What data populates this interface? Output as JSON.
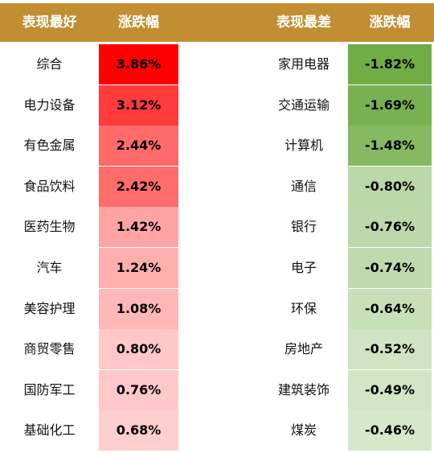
{
  "headers": {
    "best_label": "表现最好",
    "best_change": "涨跌幅",
    "worst_label": "表现最差",
    "worst_change": "涨跌幅"
  },
  "colors": {
    "header_bg": "#c18f31",
    "header_text": "#ffffff"
  },
  "chart_data": {
    "type": "table",
    "columns": [
      "表现最好",
      "涨跌幅",
      "表现最差",
      "涨跌幅"
    ],
    "best": [
      {
        "name": "综合",
        "change": "3.86%",
        "value": 3.86,
        "color": "#ff0000"
      },
      {
        "name": "电力设备",
        "change": "3.12%",
        "value": 3.12,
        "color": "#ff3b3b"
      },
      {
        "name": "有色金属",
        "change": "2.44%",
        "value": 2.44,
        "color": "#ff6b6b"
      },
      {
        "name": "食品饮料",
        "change": "2.42%",
        "value": 2.42,
        "color": "#ff6c6c"
      },
      {
        "name": "医药生物",
        "change": "1.42%",
        "value": 1.42,
        "color": "#ffa4a4"
      },
      {
        "name": "汽车",
        "change": "1.24%",
        "value": 1.24,
        "color": "#ffaeae"
      },
      {
        "name": "美容护理",
        "change": "1.08%",
        "value": 1.08,
        "color": "#ffb7b7"
      },
      {
        "name": "商贸零售",
        "change": "0.80%",
        "value": 0.8,
        "color": "#ffc7c7"
      },
      {
        "name": "国防军工",
        "change": "0.76%",
        "value": 0.76,
        "color": "#ffc9c9"
      },
      {
        "name": "基础化工",
        "change": "0.68%",
        "value": 0.68,
        "color": "#ffcece"
      }
    ],
    "worst": [
      {
        "name": "家用电器",
        "change": "-1.82%",
        "value": -1.82,
        "color": "#70ad47"
      },
      {
        "name": "交通运输",
        "change": "-1.69%",
        "value": -1.69,
        "color": "#78b151"
      },
      {
        "name": "计算机",
        "change": "-1.48%",
        "value": -1.48,
        "color": "#86b962"
      },
      {
        "name": "通信",
        "change": "-0.80%",
        "value": -0.8,
        "color": "#bad8a8"
      },
      {
        "name": "银行",
        "change": "-0.76%",
        "value": -0.76,
        "color": "#bdd9ab"
      },
      {
        "name": "电子",
        "change": "-0.74%",
        "value": -0.74,
        "color": "#bfdbae"
      },
      {
        "name": "环保",
        "change": "-0.64%",
        "value": -0.64,
        "color": "#c8e0b9"
      },
      {
        "name": "房地产",
        "change": "-0.52%",
        "value": -0.52,
        "color": "#d0e4c3"
      },
      {
        "name": "建筑装饰",
        "change": "-0.49%",
        "value": -0.49,
        "color": "#d2e6c6"
      },
      {
        "name": "煤炭",
        "change": "-0.46%",
        "value": -0.46,
        "color": "#d5e8ca"
      }
    ]
  }
}
